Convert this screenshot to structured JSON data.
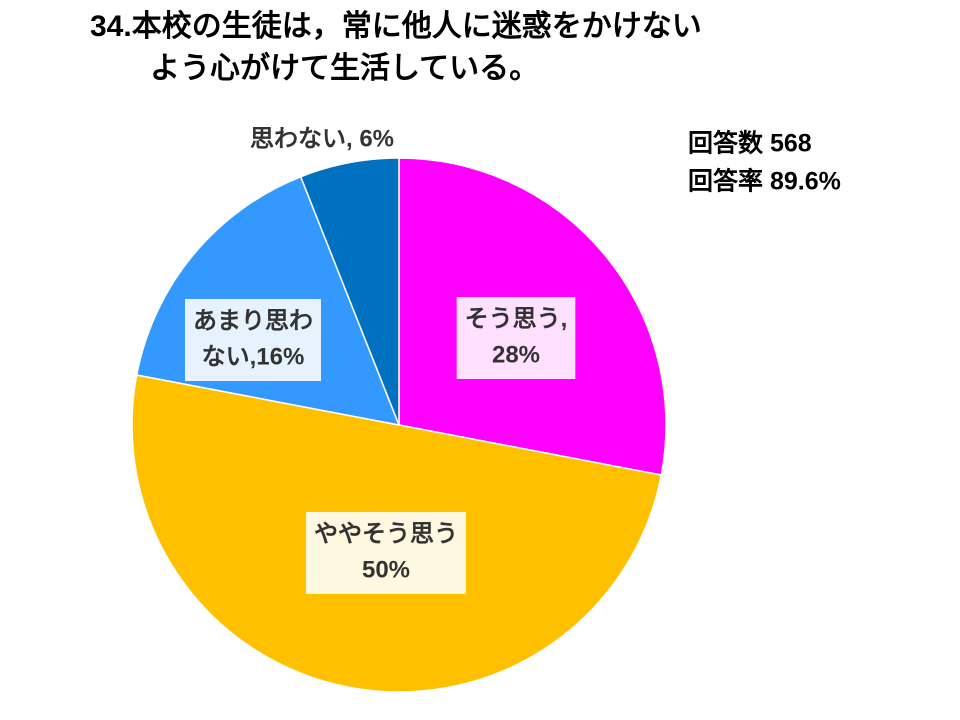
{
  "chart_data": {
    "type": "pie",
    "title": [
      "34.本校の生徒は，常に他人に迷惑をかけない",
      "よう心がけて生活している。"
    ],
    "annotations": [
      "回答数 568",
      "回答率 89.6%"
    ],
    "values": [
      28,
      50,
      16,
      6
    ],
    "labels": [
      [
        "そう思う,",
        "28%"
      ],
      [
        "ややそう思う",
        "50%"
      ],
      [
        "あまり思わ",
        "ない,16%"
      ],
      [
        "思わない, 6%"
      ]
    ],
    "colors": [
      "#ff00ff",
      "#ffc000",
      "#3399ff",
      "#0070c0"
    ]
  }
}
